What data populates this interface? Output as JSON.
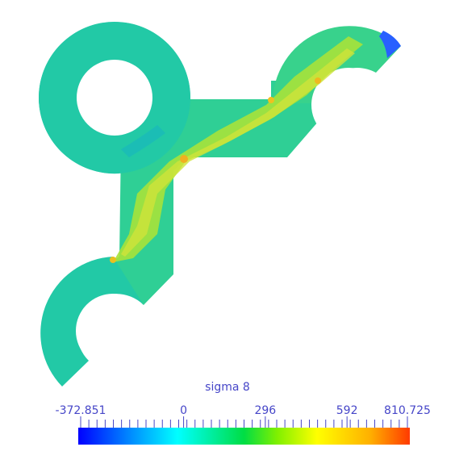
{
  "scene": {
    "field_name": "sigma 8",
    "geometry": "Y-shaped bracket plate with three ring-shaped ends and holes",
    "colormap": "rainbow (blue-cyan-green-yellow-red)"
  },
  "colorbar": {
    "title": "sigma 8",
    "min": -372.851,
    "max": 810.725,
    "labels": [
      {
        "text": "-372.851",
        "value": -372.851
      },
      {
        "text": "0",
        "value": 0
      },
      {
        "text": "296",
        "value": 296
      },
      {
        "text": "592",
        "value": 592
      },
      {
        "text": "810.725",
        "value": 810.725
      }
    ],
    "minor_tick_count": 41,
    "label_color": "#4646c8",
    "stops": [
      {
        "t": 0.0,
        "color": "#0000ff"
      },
      {
        "t": 0.25,
        "color": "#00ffff"
      },
      {
        "t": 0.5,
        "color": "#00c800"
      },
      {
        "t": 0.75,
        "color": "#ffff00"
      },
      {
        "t": 1.0,
        "color": "#ff3a00"
      }
    ]
  }
}
